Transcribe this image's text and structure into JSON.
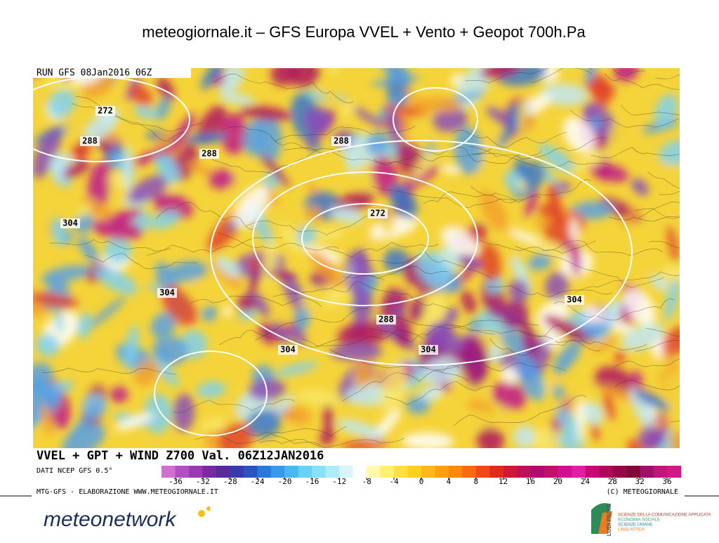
{
  "title": "meteogiornale.it – GFS Europa VVEL + Vento + Geopot 700h.Pa",
  "map": {
    "run_label": "RUN GFS 08Jan2016 06Z",
    "caption": "VVEL + GPT + WIND Z700 Val. 06Z12JAN2016",
    "source": "DATI NCEP GFS 0.5°",
    "credit": "MTG-GFS - ELABORAZIONE WWW.METEOGIORNALE.IT",
    "copyright": "(C) METEOGIORNALE",
    "contour_labels": [
      272,
      288,
      288,
      288,
      304,
      272,
      304,
      304,
      288,
      304,
      304
    ],
    "colorbar": {
      "ticks": [
        -36,
        -32,
        -28,
        -24,
        -20,
        -16,
        -12,
        -8,
        -4,
        0,
        4,
        8,
        12,
        16,
        20,
        24,
        28,
        32,
        36
      ]
    }
  },
  "footer": {
    "left_logo": "meteonetwork",
    "right_logo_title": "LUDI PIUATI",
    "right_logo_lines": [
      "SCIENZE DELLA COMUNICAZIONE APPLICATA",
      "ECONOMIA SOCIALE",
      "SCIENZE UMANE",
      "LINGUISTICA"
    ]
  }
}
